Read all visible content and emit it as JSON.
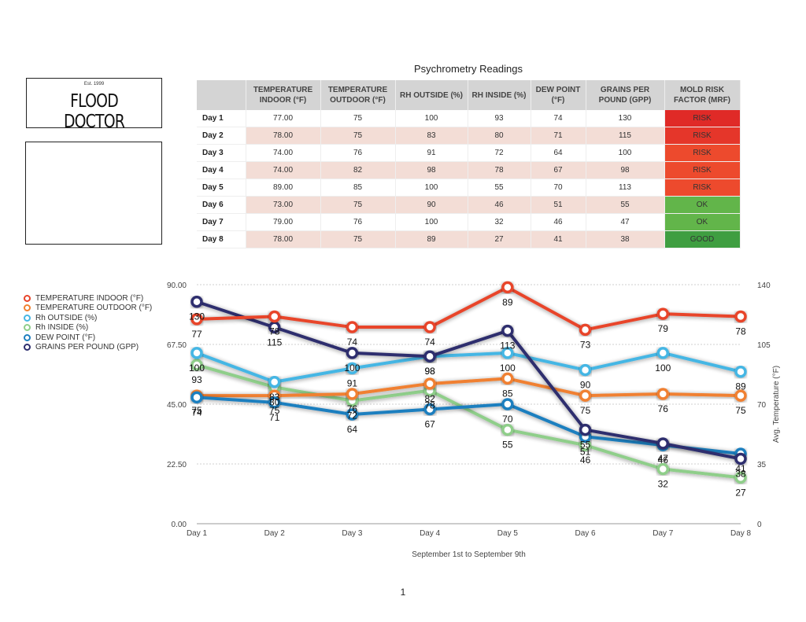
{
  "logo": {
    "est": "Est. 1999",
    "name": "FLOOD DOCTOR"
  },
  "table": {
    "title": "Psychrometry Readings",
    "headers": [
      "",
      "TEMPERATURE INDOOR (°F)",
      "TEMPERATURE OUTDOOR (°F)",
      "RH OUTSIDE (%)",
      "RH INSIDE (%)",
      "DEW POINT (°F)",
      "GRAINS PER POUND (GPP)",
      "MOLD RISK FACTOR (MRF)"
    ],
    "rows": [
      {
        "day": "Day 1",
        "cells": [
          "77.00",
          "75",
          "100",
          "93",
          "74",
          "130"
        ],
        "mrf": "RISK",
        "mrf_color": "#e02a27"
      },
      {
        "day": "Day 2",
        "cells": [
          "78.00",
          "75",
          "83",
          "80",
          "71",
          "115"
        ],
        "mrf": "RISK",
        "mrf_color": "#e5362a"
      },
      {
        "day": "Day 3",
        "cells": [
          "74.00",
          "76",
          "91",
          "72",
          "64",
          "100"
        ],
        "mrf": "RISK",
        "mrf_color": "#ed4a2d"
      },
      {
        "day": "Day 4",
        "cells": [
          "74.00",
          "82",
          "98",
          "78",
          "67",
          "98"
        ],
        "mrf": "RISK",
        "mrf_color": "#ed4a2d"
      },
      {
        "day": "Day 5",
        "cells": [
          "89.00",
          "85",
          "100",
          "55",
          "70",
          "113"
        ],
        "mrf": "RISK",
        "mrf_color": "#ed4a2d"
      },
      {
        "day": "Day 6",
        "cells": [
          "73.00",
          "75",
          "90",
          "46",
          "51",
          "55"
        ],
        "mrf": "OK",
        "mrf_color": "#62b54a"
      },
      {
        "day": "Day 7",
        "cells": [
          "79.00",
          "76",
          "100",
          "32",
          "46",
          "47"
        ],
        "mrf": "OK",
        "mrf_color": "#62b54a"
      },
      {
        "day": "Day 8",
        "cells": [
          "78.00",
          "75",
          "89",
          "27",
          "41",
          "38"
        ],
        "mrf": "GOOD",
        "mrf_color": "#3f9e41"
      }
    ]
  },
  "chart_data": {
    "type": "line",
    "title": "",
    "xlabel": "September 1st to September 9th",
    "ylabel": "",
    "y2label": "Avg. Temperature (°F)",
    "categories": [
      "Day 1",
      "Day 2",
      "Day 3",
      "Day 4",
      "Day 5",
      "Day 6",
      "Day 7",
      "Day 8"
    ],
    "ylim": [
      0,
      90
    ],
    "y2lim": [
      0,
      140
    ],
    "yticks": [
      "0.00",
      "22.50",
      "45.00",
      "67.50",
      "90.00"
    ],
    "y2ticks": [
      "0",
      "35",
      "70",
      "105",
      "140"
    ],
    "grid": true,
    "legend_position": "left",
    "series": [
      {
        "name": "TEMPERATURE INDOOR (°F)",
        "color": "#e8452b",
        "axis": "left",
        "values": [
          77,
          78,
          74,
          74,
          89,
          73,
          79,
          78
        ]
      },
      {
        "name": "TEMPERATURE OUTDOOR (°F)",
        "color": "#f08030",
        "axis": "right",
        "values": [
          75,
          75,
          76,
          82,
          85,
          75,
          76,
          75
        ]
      },
      {
        "name": "Rh OUTSIDE (%)",
        "color": "#45b6e4",
        "axis": "right",
        "values": [
          100,
          83,
          91,
          98,
          100,
          90,
          100,
          89
        ]
      },
      {
        "name": "Rh INSIDE (%)",
        "color": "#8fce8a",
        "axis": "right",
        "values": [
          93,
          80,
          72,
          78,
          55,
          46,
          32,
          27
        ]
      },
      {
        "name": "DEW POINT (°F)",
        "color": "#1f7fbf",
        "axis": "right",
        "values": [
          74,
          71,
          64,
          67,
          70,
          51,
          46,
          41
        ]
      },
      {
        "name": "GRAINS PER POUND (GPP)",
        "color": "#2d2e6e",
        "axis": "right",
        "values": [
          130,
          115,
          100,
          98,
          113,
          55,
          47,
          38
        ]
      }
    ]
  },
  "page_number": "1"
}
